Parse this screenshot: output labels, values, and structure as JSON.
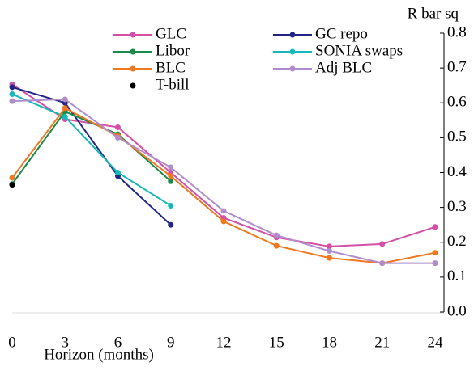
{
  "chart_data": {
    "type": "line",
    "y_label": "R bar sq",
    "x_label": "Horizon (months)",
    "x": [
      0,
      3,
      6,
      9,
      12,
      15,
      18,
      21,
      24
    ],
    "xlim": [
      0,
      24
    ],
    "xticks": [
      0,
      3,
      6,
      9,
      12,
      15,
      18,
      21,
      24
    ],
    "ylim": [
      0,
      0.8
    ],
    "yticks": [
      {
        "value": 0,
        "label": "0.0"
      },
      0.1,
      0.2,
      0.3,
      0.4,
      0.5,
      0.6,
      0.7,
      0.8
    ],
    "y_axis_side": "right",
    "series": [
      {
        "name": "GLC",
        "color": "#d44fa6",
        "values": [
          0.653,
          0.553,
          0.53,
          0.4,
          0.27,
          0.214,
          0.188,
          0.195,
          0.244
        ]
      },
      {
        "name": "GC repo",
        "color": "#232585",
        "values": [
          0.645,
          0.6,
          0.39,
          0.25,
          null,
          null,
          null,
          null,
          null
        ]
      },
      {
        "name": "Libor",
        "color": "#1a8a4a",
        "values": [
          0.367,
          0.575,
          0.51,
          0.375,
          null,
          null,
          null,
          null,
          null
        ]
      },
      {
        "name": "SONIA swaps",
        "color": "#17b8b8",
        "values": [
          0.625,
          0.56,
          0.4,
          0.305,
          null,
          null,
          null,
          null,
          null
        ]
      },
      {
        "name": "BLC",
        "color": "#f07820",
        "values": [
          0.385,
          0.585,
          0.505,
          0.39,
          0.26,
          0.19,
          0.155,
          0.14,
          0.17
        ]
      },
      {
        "name": "Adj BLC",
        "color": "#b08ccc",
        "values": [
          0.605,
          0.61,
          0.5,
          0.415,
          0.29,
          0.22,
          0.175,
          0.14,
          0.14
        ]
      },
      {
        "name": "T-bill",
        "color": "#000000",
        "values": [
          0.365,
          null,
          null,
          null,
          null,
          null,
          null,
          null,
          null
        ]
      }
    ]
  }
}
